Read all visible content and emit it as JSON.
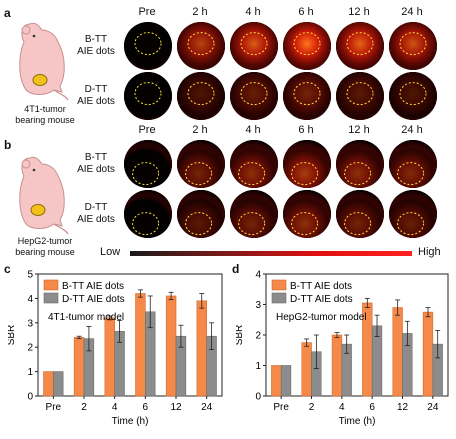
{
  "panels": {
    "a": "a",
    "b": "b",
    "c": "c",
    "d": "d"
  },
  "timepoints": [
    "Pre",
    "2 h",
    "4 h",
    "6 h",
    "12 h",
    "24 h"
  ],
  "panel_a": {
    "rows": [
      {
        "label_line1": "B-TT",
        "label_line2": "AIE dots",
        "intensity": [
          0.02,
          0.7,
          0.85,
          1.0,
          0.9,
          0.8
        ]
      },
      {
        "label_line1": "D-TT",
        "label_line2": "AIE dots",
        "intensity": [
          0.02,
          0.3,
          0.4,
          0.45,
          0.35,
          0.3
        ]
      }
    ],
    "caption_line1": "4T1-tumor",
    "caption_line2": "bearing mouse"
  },
  "panel_b": {
    "rows": [
      {
        "label_line1": "B-TT",
        "label_line2": "AIE dots",
        "intensity": [
          0.02,
          0.45,
          0.55,
          0.65,
          0.55,
          0.5
        ]
      },
      {
        "label_line1": "D-TT",
        "label_line2": "AIE dots",
        "intensity": [
          0.02,
          0.35,
          0.45,
          0.55,
          0.45,
          0.4
        ]
      }
    ],
    "caption_line1": "HepG2-tumor",
    "caption_line2": "bearing mouse"
  },
  "scale": {
    "low": "Low",
    "high": "High"
  },
  "colors": {
    "btt": "#f4894a",
    "dtt": "#8c8c8c",
    "tumor": "#f2c21b",
    "mouse": "#f6c6c6",
    "circle": "#f5e83a"
  },
  "chart_data": [
    {
      "type": "bar",
      "panel": "c",
      "annotation": "4T1-tumor model",
      "categories": [
        "Pre",
        "2",
        "4",
        "6",
        "12",
        "24"
      ],
      "series": [
        {
          "name": "B-TT AIE dots",
          "values": [
            1.0,
            2.4,
            3.2,
            4.2,
            4.1,
            3.9
          ],
          "errors": [
            0.0,
            0.05,
            0.08,
            0.15,
            0.15,
            0.3
          ]
        },
        {
          "name": "D-TT AIE dots",
          "values": [
            1.0,
            2.35,
            2.65,
            3.45,
            2.45,
            2.45
          ],
          "errors": [
            0.0,
            0.5,
            0.45,
            0.65,
            0.45,
            0.55
          ]
        }
      ],
      "xlabel": "Time (h)",
      "ylabel": "SBR",
      "ylim": [
        0,
        5
      ],
      "yticks": [
        0,
        1,
        2,
        3,
        4,
        5
      ],
      "legend": "top-left"
    },
    {
      "type": "bar",
      "panel": "d",
      "annotation": "HepG2-tumor model",
      "categories": [
        "Pre",
        "2",
        "4",
        "6",
        "12",
        "24"
      ],
      "series": [
        {
          "name": "B-TT AIE dots",
          "values": [
            1.0,
            1.75,
            2.0,
            3.05,
            2.9,
            2.75
          ],
          "errors": [
            0.0,
            0.12,
            0.08,
            0.15,
            0.25,
            0.15
          ]
        },
        {
          "name": "D-TT AIE dots",
          "values": [
            1.0,
            1.45,
            1.7,
            2.3,
            2.05,
            1.7
          ],
          "errors": [
            0.0,
            0.55,
            0.3,
            0.35,
            0.4,
            0.45
          ]
        }
      ],
      "xlabel": "Time (h)",
      "ylabel": "SBR",
      "ylim": [
        0,
        4
      ],
      "yticks": [
        0,
        1,
        2,
        3,
        4
      ],
      "legend": "top-left"
    }
  ]
}
